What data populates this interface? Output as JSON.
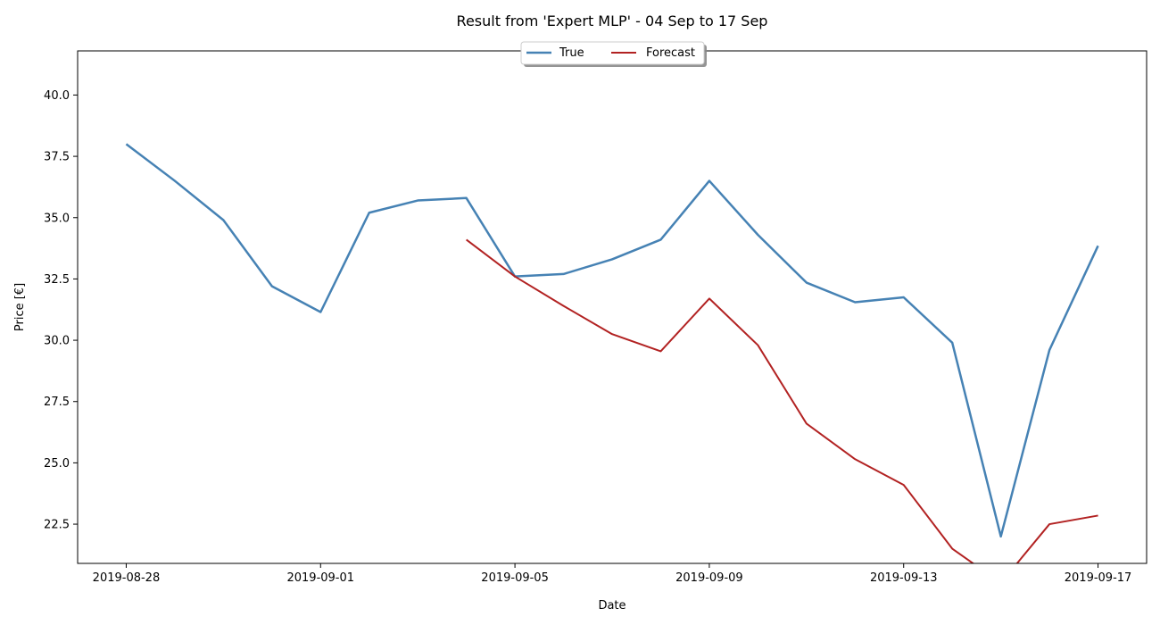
{
  "chart_data": {
    "type": "line",
    "title": "Result from 'Expert MLP' - 04 Sep to 17 Sep",
    "xlabel": "Date",
    "ylabel": "Price [€]",
    "ylim": [
      20.9,
      41.8
    ],
    "xlim": [
      "2019-08-27",
      "2019-09-18"
    ],
    "x_ticks": [
      "2019-08-28",
      "2019-09-01",
      "2019-09-05",
      "2019-09-09",
      "2019-09-13",
      "2019-09-17"
    ],
    "y_ticks": [
      22.5,
      25.0,
      27.5,
      30.0,
      32.5,
      35.0,
      37.5,
      40.0
    ],
    "y_tick_labels": [
      "22.5",
      "25.0",
      "27.5",
      "30.0",
      "32.5",
      "35.0",
      "37.5",
      "40.0"
    ],
    "legend_position": "top-center",
    "grid": false,
    "series": [
      {
        "name": "True",
        "color": "#4682b4",
        "points": [
          [
            "2019-08-28",
            38.0
          ],
          [
            "2019-08-29",
            36.5
          ],
          [
            "2019-08-30",
            34.9
          ],
          [
            "2019-08-31",
            32.2
          ],
          [
            "2019-09-01",
            31.15
          ],
          [
            "2019-09-02",
            35.2
          ],
          [
            "2019-09-03",
            35.7
          ],
          [
            "2019-09-04",
            35.8
          ],
          [
            "2019-09-05",
            32.6
          ],
          [
            "2019-09-06",
            32.7
          ],
          [
            "2019-09-07",
            33.3
          ],
          [
            "2019-09-08",
            34.1
          ],
          [
            "2019-09-09",
            36.5
          ],
          [
            "2019-09-10",
            34.3
          ],
          [
            "2019-09-11",
            32.35
          ],
          [
            "2019-09-12",
            31.55
          ],
          [
            "2019-09-13",
            31.75
          ],
          [
            "2019-09-14",
            29.9
          ],
          [
            "2019-09-15",
            22.0
          ],
          [
            "2019-09-16",
            29.6
          ],
          [
            "2019-09-17",
            33.85
          ]
        ]
      },
      {
        "name": "Forecast",
        "color": "#b22222",
        "points": [
          [
            "2019-09-04",
            34.1
          ],
          [
            "2019-09-05",
            32.6
          ],
          [
            "2019-09-06",
            31.4
          ],
          [
            "2019-09-07",
            30.25
          ],
          [
            "2019-09-08",
            29.55
          ],
          [
            "2019-09-09",
            31.7
          ],
          [
            "2019-09-10",
            29.8
          ],
          [
            "2019-09-11",
            26.6
          ],
          [
            "2019-09-12",
            25.15
          ],
          [
            "2019-09-13",
            24.1
          ],
          [
            "2019-09-14",
            21.5
          ],
          [
            "2019-09-15",
            20.1
          ],
          [
            "2019-09-16",
            22.5
          ],
          [
            "2019-09-17",
            22.85
          ]
        ]
      }
    ]
  }
}
